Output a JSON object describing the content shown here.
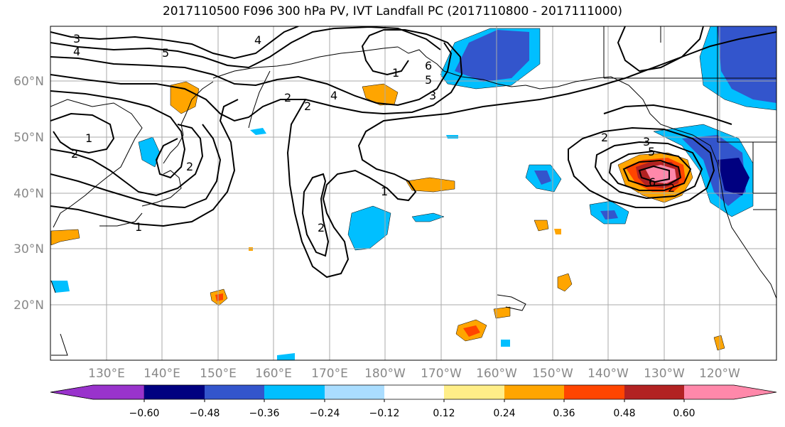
{
  "title": "2017110500 F096 300 hPa PV, IVT Landfall PC (2017110800 - 2017111000)",
  "map": {
    "lon_labels": [
      "130°E",
      "140°E",
      "150°E",
      "160°E",
      "170°E",
      "180°W",
      "170°W",
      "160°W",
      "150°W",
      "140°W",
      "130°W",
      "120°W"
    ],
    "lat_labels": [
      "60°N",
      "50°N",
      "40°N",
      "30°N",
      "20°N"
    ],
    "contour_labels": [
      "3",
      "4",
      "5",
      "4",
      "1",
      "6",
      "5",
      "4",
      "3",
      "2",
      "2",
      "1",
      "2",
      "2",
      "1",
      "2",
      "1",
      "2",
      "3",
      "5",
      "6",
      "2"
    ]
  },
  "colorbar": {
    "colors": [
      "#9933cc",
      "#000080",
      "#3355cc",
      "#00bfff",
      "#aaddff",
      "#ffffff",
      "#ffee88",
      "#ffa500",
      "#ff4500",
      "#b22222",
      "#ff88aa"
    ],
    "tick_labels": [
      "−0.60",
      "−0.48",
      "−0.36",
      "−0.24",
      "−0.12",
      "0.12",
      "0.24",
      "0.36",
      "0.48",
      "0.60"
    ]
  }
}
